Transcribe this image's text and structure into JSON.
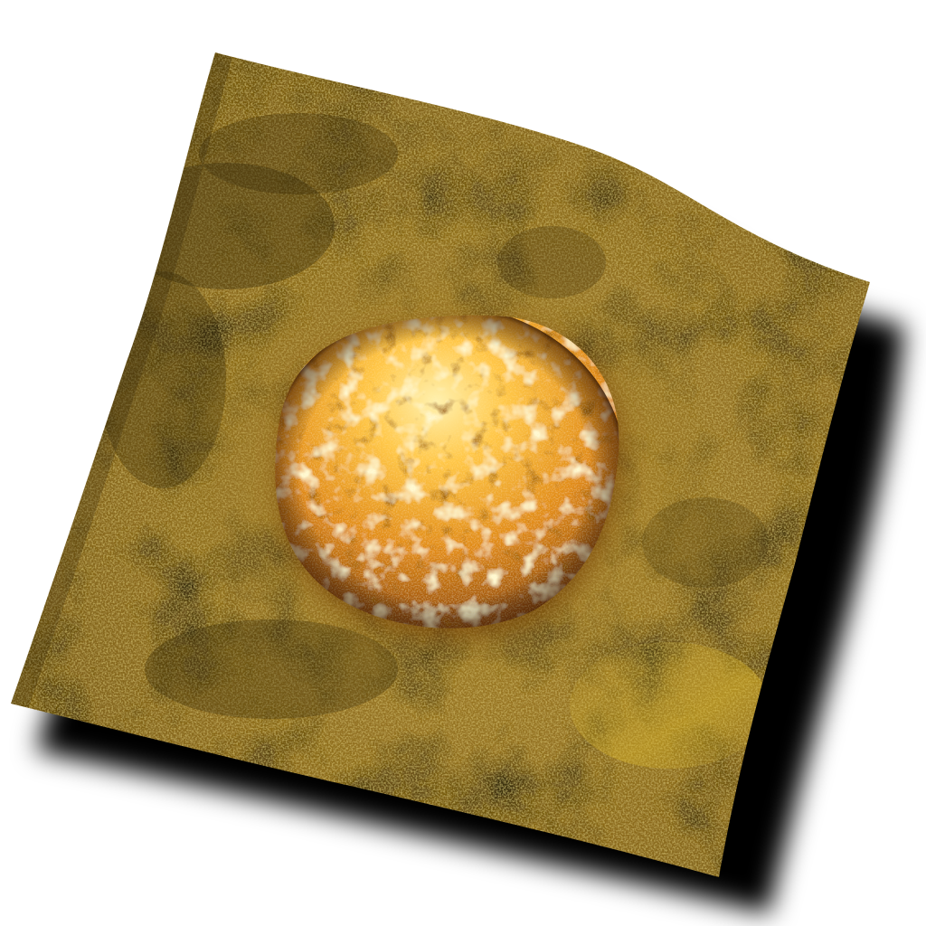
{
  "scene": {
    "subject": "textured-surface-with-glowing-dome",
    "colors": {
      "background": "#ffffff",
      "shadow": "#000000",
      "surface_base": "#8a6a1c",
      "surface_light": "#b38f2a",
      "surface_dark": "#4a3a10",
      "dome_core": "#fff2a8",
      "dome_mid": "#f0a020",
      "dome_edge": "#7a3c06"
    }
  }
}
